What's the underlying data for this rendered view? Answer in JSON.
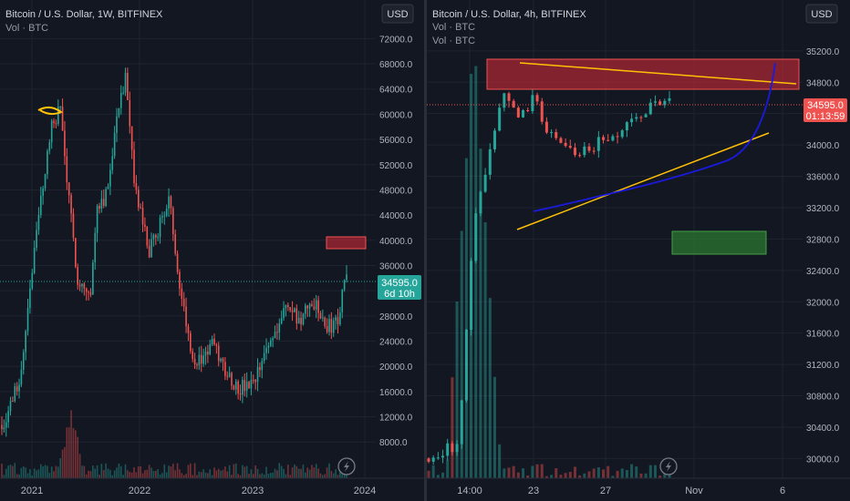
{
  "left_panel": {
    "title": "Bitcoin / U.S. Dollar, 1W, BITFINEX",
    "volume_legend": "Vol · BTC",
    "currency_button": "USD",
    "price_tag": "34595.0",
    "countdown": "6d 10h",
    "colors": {
      "up": "#26a69a",
      "down": "#ef5350",
      "zone": "#b22833"
    }
  },
  "right_panel": {
    "title": "Bitcoin / U.S. Dollar, 4h, BITFINEX",
    "volume_legends": [
      "Vol · BTC",
      "Vol · BTC"
    ],
    "currency_button": "USD",
    "price_tag": "34595.0",
    "countdown": "01:13:59",
    "colors": {
      "up": "#26a69a",
      "down": "#ef5350",
      "resistance_zone": "#b22833",
      "target_zone": "#2e7d32",
      "trendline": "#ffc107",
      "curve": "#1a1adf"
    }
  },
  "chart_data": [
    {
      "type": "candlestick",
      "title": "Bitcoin / U.S. Dollar, 1W, BITFINEX",
      "x_ticks": [
        "2021",
        "2022",
        "2023",
        "2024"
      ],
      "y_ticks": [
        8000,
        12000,
        16000,
        20000,
        24000,
        28000,
        32000,
        36000,
        40000,
        44000,
        48000,
        52000,
        56000,
        60000,
        64000,
        68000,
        72000
      ],
      "ylim": [
        5000,
        73500
      ],
      "last_price": 34595.0,
      "close_path": [
        [
          "2020-10-05",
          10700
        ],
        [
          "2020-11-02",
          13800
        ],
        [
          "2020-12-07",
          19200
        ],
        [
          "2021-01-04",
          33000
        ],
        [
          "2021-02-15",
          49000
        ],
        [
          "2021-03-15",
          58000
        ],
        [
          "2021-04-12",
          61000
        ],
        [
          "2021-05-10",
          46000
        ],
        [
          "2021-06-07",
          34000
        ],
        [
          "2021-07-19",
          31000
        ],
        [
          "2021-08-09",
          46000
        ],
        [
          "2021-09-06",
          47000
        ],
        [
          "2021-10-18",
          62000
        ],
        [
          "2021-11-08",
          65500
        ],
        [
          "2021-12-06",
          49000
        ],
        [
          "2022-01-24",
          38000
        ],
        [
          "2022-03-28",
          46500
        ],
        [
          "2022-05-09",
          31000
        ],
        [
          "2022-06-20",
          20000
        ],
        [
          "2022-08-15",
          23500
        ],
        [
          "2022-09-26",
          19500
        ],
        [
          "2022-11-07",
          16500
        ],
        [
          "2022-12-26",
          16800
        ],
        [
          "2023-02-13",
          23500
        ],
        [
          "2023-04-10",
          29500
        ],
        [
          "2023-05-29",
          27000
        ],
        [
          "2023-07-03",
          30500
        ],
        [
          "2023-08-21",
          26000
        ],
        [
          "2023-09-25",
          27500
        ],
        [
          "2023-10-23",
          34595
        ]
      ],
      "zone": {
        "ymin": 39300,
        "ymax": 40700
      }
    },
    {
      "type": "candlestick",
      "title": "Bitcoin / U.S. Dollar, 4h, BITFINEX",
      "x_ticks": [
        "14:00",
        "23",
        "27",
        "Nov",
        "6"
      ],
      "y_ticks": [
        30000,
        30400,
        30800,
        31200,
        31600,
        32000,
        32400,
        32800,
        33200,
        33600,
        34000,
        34400,
        34800,
        35200
      ],
      "ylim": [
        29900,
        35500
      ],
      "last_price": 34595.0,
      "close_path": [
        [
          "2023-10-22",
          30000
        ],
        [
          "2023-10-23",
          30200
        ],
        [
          "2023-10-23 12:00",
          33000
        ],
        [
          "2023-10-24",
          33800
        ],
        [
          "2023-10-24 12:00",
          34700
        ],
        [
          "2023-10-25",
          34300
        ],
        [
          "2023-10-25 12:00",
          34600
        ],
        [
          "2023-10-26",
          34100
        ],
        [
          "2023-10-27",
          33900
        ],
        [
          "2023-10-28",
          34100
        ],
        [
          "2023-10-29",
          34400
        ],
        [
          "2023-10-30",
          34595
        ]
      ],
      "resistance_zone": {
        "ymin": 34810,
        "ymax": 35180
      },
      "target_zone": {
        "ymin": 32700,
        "ymax": 32980
      }
    }
  ]
}
